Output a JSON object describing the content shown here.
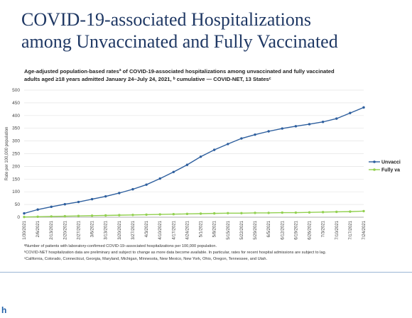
{
  "slide": {
    "title_line1": "COVID-19-associated Hospitalizations",
    "title_line2": "among Unvaccinated and Fully Vaccinated",
    "chart_heading_line1": "Age-adjusted population-based ratesª of COVID-19-associated hospitalizations among unvaccinated and fully vaccinated",
    "chart_heading_line2": "adults aged ≥18 years admitted January 24–July 24, 2021, ᵇ cumulative — COVID-NET, 13 Statesᶜ",
    "footnotes": [
      "ªNumber of patients with laboratory-confirmed COVID-19–associated hospitalizations per 100,000 population.",
      "ᵇCOVID-NET hospitalization data are preliminary and subject to change as more data become available. In particular, rates for recent hospital admissions are subject to lag.",
      "ᶜCalifornia, Colorado, Connecticut, Georgia, Maryland, Michigan, Minnesota, New Mexico, New York, Ohio, Oregon, Tennessee, and Utah."
    ],
    "corner_text": "h"
  },
  "colors": {
    "unvaccinated": "#2e5f9e",
    "fully_vaccinated": "#92d050",
    "title": "#1f3864"
  },
  "chart_data": {
    "type": "line",
    "title": "",
    "ylabel": "Rate per 100,000 population",
    "xlabel": "",
    "ylim": [
      0,
      500
    ],
    "yticks": [
      0,
      50,
      100,
      150,
      200,
      250,
      300,
      350,
      400,
      450,
      500
    ],
    "grid": true,
    "legend": "right",
    "categories": [
      "1/30/2021",
      "2/6/2021",
      "2/13/2021",
      "2/20/2021",
      "2/27/2021",
      "3/6/2021",
      "3/13/2021",
      "3/20/2021",
      "3/27/2021",
      "4/3/2021",
      "4/10/2021",
      "4/17/2021",
      "4/24/2021",
      "5/1/2021",
      "5/8/2021",
      "5/15/2021",
      "5/22/2021",
      "5/29/2021",
      "6/5/2021",
      "6/12/2021",
      "6/19/2021",
      "6/26/2021",
      "7/3/2021",
      "7/10/2021",
      "7/17/2021",
      "7/24/2021"
    ],
    "series": [
      {
        "name": "Unvacci",
        "values": [
          15,
          30,
          41,
          51,
          60,
          71,
          82,
          95,
          110,
          128,
          152,
          178,
          206,
          238,
          265,
          288,
          310,
          325,
          338,
          349,
          358,
          366,
          375,
          388,
          410,
          432
        ]
      },
      {
        "name": "Fully va",
        "values": [
          1,
          2,
          3,
          4,
          5,
          6,
          7,
          8,
          9,
          10,
          11,
          12,
          13,
          14,
          15,
          16,
          16,
          17,
          17,
          18,
          18,
          19,
          20,
          21,
          22,
          24
        ]
      }
    ]
  }
}
